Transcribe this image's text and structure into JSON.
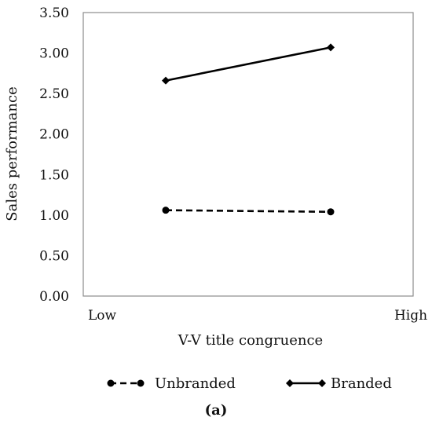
{
  "chart_data": {
    "type": "line",
    "xlabel": "V-V title congruence",
    "ylabel": "Sales performance",
    "x_tick_labels": [
      "Low",
      "High"
    ],
    "ylim": [
      0,
      3.5
    ],
    "y_ticks": [
      "0.00",
      "0.50",
      "1.00",
      "1.50",
      "2.00",
      "2.50",
      "3.00",
      "3.50"
    ],
    "series": [
      {
        "name": "Unbranded",
        "style": "dashed",
        "marker": "circle",
        "x": [
          0.25,
          0.75
        ],
        "values": [
          1.06,
          1.04
        ]
      },
      {
        "name": "Branded",
        "style": "solid",
        "marker": "diamond",
        "x": [
          0.25,
          0.75
        ],
        "values": [
          2.66,
          3.07
        ]
      }
    ],
    "grid": false,
    "legend_position": "bottom"
  },
  "caption": "(a)",
  "colors": {
    "line": "#000000",
    "frame": "#999999"
  }
}
